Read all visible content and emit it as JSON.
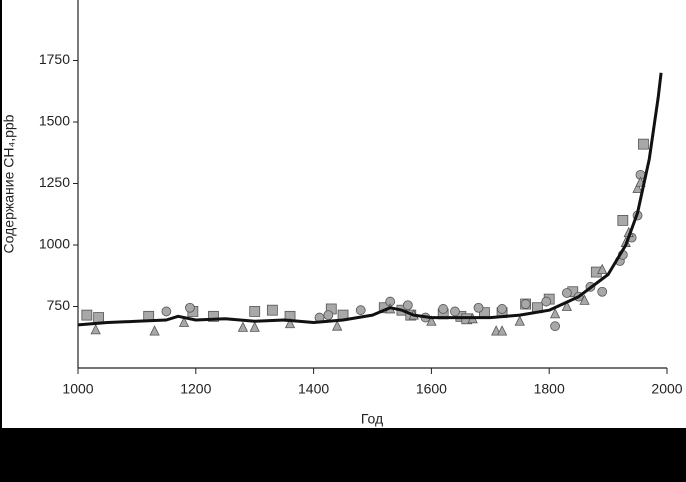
{
  "chart_data": {
    "type": "scatter",
    "x_label": "Год",
    "y_label": "Содержание CH₄,ppb",
    "xlim": [
      1000,
      2000
    ],
    "xticks": [
      1000,
      1200,
      1400,
      1600,
      1800,
      2000
    ],
    "ylim": [
      500,
      2000
    ],
    "yticks": [
      750,
      1000,
      1250,
      1500,
      1750
    ],
    "line": {
      "color": "#111111",
      "x": [
        1000,
        1050,
        1100,
        1150,
        1170,
        1200,
        1250,
        1300,
        1350,
        1400,
        1450,
        1500,
        1530,
        1550,
        1570,
        1600,
        1650,
        1700,
        1750,
        1800,
        1850,
        1900,
        1930,
        1950,
        1970,
        1985,
        1990
      ],
      "values": [
        675,
        685,
        690,
        695,
        710,
        695,
        700,
        690,
        695,
        685,
        695,
        715,
        745,
        735,
        715,
        705,
        705,
        705,
        715,
        735,
        790,
        880,
        1000,
        1130,
        1350,
        1600,
        1700
      ]
    },
    "series": [
      {
        "marker": "square",
        "color": "#a8a8a8",
        "x": [
          1015,
          1035,
          1120,
          1195,
          1230,
          1300,
          1330,
          1360,
          1430,
          1450,
          1520,
          1550,
          1565,
          1620,
          1650,
          1660,
          1690,
          1720,
          1760,
          1780,
          1800,
          1840,
          1880,
          1925,
          1960
        ],
        "values": [
          715,
          705,
          710,
          730,
          710,
          730,
          735,
          710,
          740,
          715,
          745,
          735,
          715,
          720,
          710,
          700,
          725,
          725,
          760,
          745,
          780,
          810,
          890,
          1100,
          1410
        ]
      },
      {
        "marker": "circle",
        "color": "#a8a8a8",
        "x": [
          1150,
          1190,
          1410,
          1425,
          1480,
          1530,
          1560,
          1590,
          1620,
          1640,
          1680,
          1720,
          1760,
          1795,
          1810,
          1830,
          1850,
          1870,
          1890,
          1920,
          1925,
          1940,
          1950,
          1955
        ],
        "values": [
          730,
          745,
          705,
          715,
          735,
          770,
          755,
          705,
          740,
          730,
          745,
          740,
          760,
          770,
          670,
          805,
          790,
          830,
          810,
          935,
          960,
          1030,
          1120,
          1285
        ]
      },
      {
        "marker": "triangle",
        "color": "#a8a8a8",
        "x": [
          1030,
          1130,
          1180,
          1280,
          1300,
          1360,
          1440,
          1530,
          1570,
          1600,
          1670,
          1710,
          1720,
          1750,
          1810,
          1830,
          1860,
          1890,
          1930,
          1935,
          1950,
          1955
        ],
        "values": [
          655,
          650,
          685,
          665,
          665,
          680,
          670,
          740,
          715,
          690,
          700,
          650,
          650,
          690,
          720,
          750,
          775,
          900,
          1010,
          1050,
          1230,
          1255
        ]
      }
    ]
  }
}
